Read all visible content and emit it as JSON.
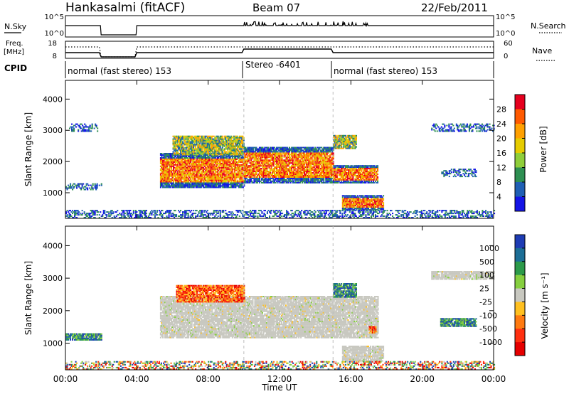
{
  "header": {
    "station": "Hankasalmi (fitACF)",
    "beam": "Beam 07",
    "date": "22/Feb/2011"
  },
  "panels": {
    "nsky": {
      "label": "N.Sky",
      "left_ticks": [
        "10^5",
        "10^0"
      ],
      "right_ticks": [
        "10^5",
        "10^0"
      ],
      "right_label": "N.Search"
    },
    "freq": {
      "label_line1": "Freq.",
      "label_line2": "[MHz]",
      "left_ticks": [
        "18",
        "8"
      ],
      "right_ticks": [
        "60",
        "0"
      ],
      "right_label": "Nave"
    },
    "cpid": {
      "label": "CPID",
      "segments": [
        {
          "text": "normal (fast stereo) 153",
          "start_h": 0,
          "end_h": 10
        },
        {
          "text": "Stereo -6401",
          "start_h": 10,
          "end_h": 15
        },
        {
          "text": "normal (fast stereo) 153",
          "start_h": 15,
          "end_h": 24
        }
      ]
    }
  },
  "x_axis": {
    "label": "Time UT",
    "ticks": [
      "00:00",
      "04:00",
      "08:00",
      "12:00",
      "16:00",
      "20:00",
      "00:00"
    ]
  },
  "colorbars": {
    "power": {
      "label": "Power [dB]",
      "ticks": [
        "28",
        "24",
        "20",
        "16",
        "12",
        "8",
        "4"
      ],
      "colors": [
        "#e6001e",
        "#ff5a00",
        "#ffa000",
        "#e6cc00",
        "#8fce3a",
        "#2e8f52",
        "#1f5fb4",
        "#1414e6"
      ]
    },
    "velocity": {
      "label": "Velocity [m s⁻¹]",
      "ticks": [
        "1000",
        "500",
        "100",
        "25",
        "-25",
        "-100",
        "-500",
        "-1000"
      ],
      "colors": [
        "#1e3cb4",
        "#1c6e96",
        "#2c9a4a",
        "#86cf3f",
        "#c8c8c0",
        "#ffc020",
        "#ff7a10",
        "#ff3010",
        "#e60000"
      ]
    }
  },
  "chart_data": [
    {
      "type": "heatmap",
      "name": "power",
      "xlabel": "Time UT",
      "ylabel": "Slant Range [km]",
      "xlim_hours": [
        0,
        24
      ],
      "ylim_km": [
        180,
        4600
      ],
      "y_ticks": [
        1000,
        2000,
        3000,
        4000
      ],
      "zlabel": "Power [dB]",
      "zlim": [
        0,
        32
      ],
      "bands": [
        {
          "t0": 0.0,
          "t1": 2.0,
          "r0": 1080,
          "r1": 1280,
          "level": "low"
        },
        {
          "t0": 0.2,
          "t1": 1.8,
          "r0": 2950,
          "r1": 3200,
          "level": "low"
        },
        {
          "t0": 5.3,
          "t1": 10.0,
          "r0": 1150,
          "r1": 2250,
          "level": "high"
        },
        {
          "t0": 6.0,
          "t1": 10.0,
          "r0": 2200,
          "r1": 2800,
          "level": "mid"
        },
        {
          "t0": 10.0,
          "t1": 15.0,
          "r0": 1300,
          "r1": 2450,
          "level": "high"
        },
        {
          "t0": 15.0,
          "t1": 17.5,
          "r0": 1300,
          "r1": 1850,
          "level": "high"
        },
        {
          "t0": 15.5,
          "t1": 17.8,
          "r0": 430,
          "r1": 900,
          "level": "high"
        },
        {
          "t0": 15.0,
          "t1": 16.3,
          "r0": 2400,
          "r1": 2850,
          "level": "mid"
        },
        {
          "t0": 20.5,
          "t1": 24.0,
          "r0": 2950,
          "r1": 3200,
          "level": "low"
        },
        {
          "t0": 21.0,
          "t1": 23.0,
          "r0": 1500,
          "r1": 1750,
          "level": "low"
        },
        {
          "t0": 0.0,
          "t1": 24.0,
          "r0": 180,
          "r1": 450,
          "level": "low"
        }
      ]
    },
    {
      "type": "heatmap",
      "name": "velocity",
      "xlabel": "Time UT",
      "ylabel": "Slant Range [km]",
      "xlim_hours": [
        0,
        24
      ],
      "ylim_km": [
        180,
        4600
      ],
      "y_ticks": [
        1000,
        2000,
        3000,
        4000
      ],
      "zlabel": "Velocity [m s⁻¹]",
      "zlim": [
        -1000,
        1000
      ],
      "bands": [
        {
          "t0": 5.3,
          "t1": 17.5,
          "r0": 1150,
          "r1": 2450,
          "level": "ground"
        },
        {
          "t0": 6.2,
          "t1": 10.0,
          "r0": 2250,
          "r1": 2750,
          "level": "neg"
        },
        {
          "t0": 15.5,
          "t1": 17.8,
          "r0": 430,
          "r1": 900,
          "level": "ground"
        },
        {
          "t0": 15.0,
          "t1": 16.3,
          "r0": 2400,
          "r1": 2850,
          "level": "pos"
        },
        {
          "t0": 17.0,
          "t1": 17.4,
          "r0": 1300,
          "r1": 1500,
          "level": "neg"
        },
        {
          "t0": 0.0,
          "t1": 2.0,
          "r0": 1080,
          "r1": 1280,
          "level": "pos"
        },
        {
          "t0": 20.5,
          "t1": 24.0,
          "r0": 2950,
          "r1": 3200,
          "level": "ground"
        },
        {
          "t0": 21.0,
          "t1": 23.0,
          "r0": 1500,
          "r1": 1750,
          "level": "pos"
        },
        {
          "t0": 0.0,
          "t1": 24.0,
          "r0": 180,
          "r1": 450,
          "level": "mixed"
        }
      ]
    }
  ]
}
